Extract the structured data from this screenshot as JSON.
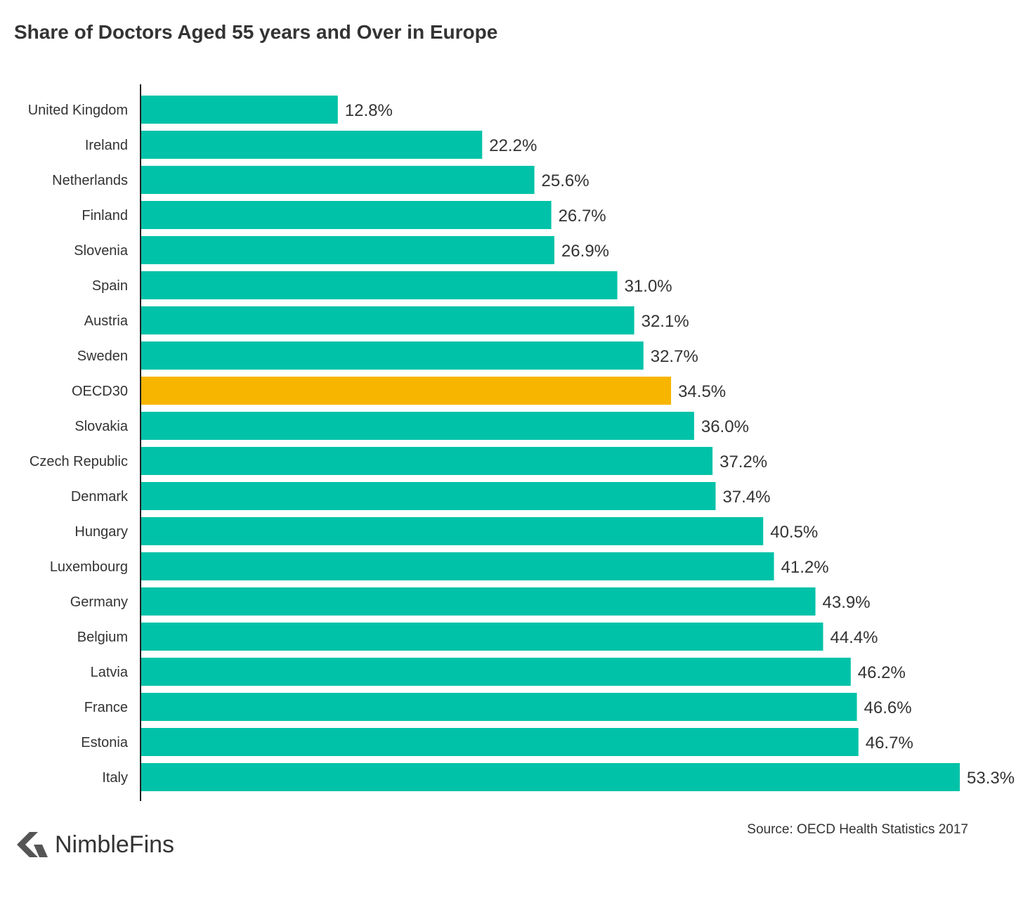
{
  "title": "Share of Doctors Aged 55 years and Over in Europe",
  "source": "Source: OECD Health Statistics 2017",
  "brand": {
    "name": "NimbleFins",
    "logo_icon": "nimblefins-arrow-logo"
  },
  "colors": {
    "bar": "#00c2a8",
    "highlight": "#f7b500",
    "text": "#333333",
    "axis": "#222222",
    "logo": "#555555"
  },
  "chart_data": {
    "type": "bar",
    "orientation": "horizontal",
    "title": "Share of Doctors Aged 55 years and Over in Europe",
    "xlabel": "",
    "ylabel": "",
    "unit": "%",
    "grid": false,
    "legend": "none",
    "xlim": [
      0,
      53.3
    ],
    "highlight_category": "OECD30",
    "categories": [
      "United Kingdom",
      "Ireland",
      "Netherlands",
      "Finland",
      "Slovenia",
      "Spain",
      "Austria",
      "Sweden",
      "OECD30",
      "Slovakia",
      "Czech Republic",
      "Denmark",
      "Hungary",
      "Luxembourg",
      "Germany",
      "Belgium",
      "Latvia",
      "France",
      "Estonia",
      "Italy"
    ],
    "values": [
      12.8,
      22.2,
      25.6,
      26.7,
      26.9,
      31.0,
      32.1,
      32.7,
      34.5,
      36.0,
      37.2,
      37.4,
      40.5,
      41.2,
      43.9,
      44.4,
      46.2,
      46.6,
      46.7,
      53.3
    ],
    "value_labels": [
      "12.8%",
      "22.2%",
      "25.6%",
      "26.7%",
      "26.9%",
      "31.0%",
      "32.1%",
      "32.7%",
      "34.5%",
      "36.0%",
      "37.2%",
      "37.4%",
      "40.5%",
      "41.2%",
      "43.9%",
      "44.4%",
      "46.2%",
      "46.6%",
      "46.7%",
      "53.3%"
    ]
  }
}
